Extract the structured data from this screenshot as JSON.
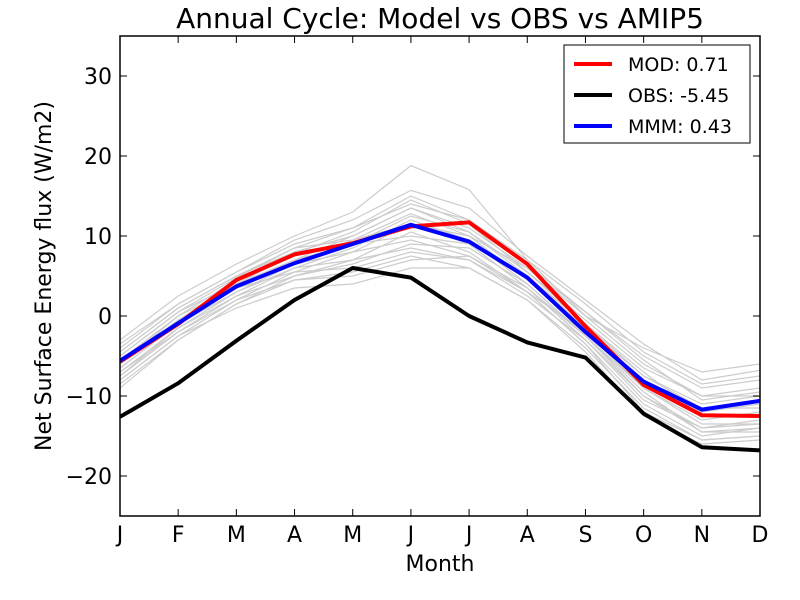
{
  "chart_data": {
    "type": "line",
    "title": "Annual Cycle: Model vs OBS vs AMIP5",
    "xlabel": "Month",
    "ylabel": "Net Surface Energy flux (W/m2)",
    "categories": [
      "J",
      "F",
      "M",
      "A",
      "M",
      "J",
      "J",
      "A",
      "S",
      "O",
      "N",
      "D"
    ],
    "ylim": [
      -25,
      35
    ],
    "yticks": [
      -20,
      -10,
      0,
      10,
      20,
      30
    ],
    "ytick_labels": [
      "−20",
      "−10",
      "0",
      "10",
      "20",
      "30"
    ],
    "grid": false,
    "legend_position": "top-right",
    "series": [
      {
        "name": "MOD: 0.71",
        "color": "#ff0000",
        "values": [
          -5.7,
          -1.0,
          4.5,
          7.7,
          9.1,
          11.2,
          11.7,
          6.5,
          -1.3,
          -8.6,
          -12.4,
          -12.5
        ]
      },
      {
        "name": "OBS: -5.45",
        "color": "#000000",
        "values": [
          -12.6,
          -8.4,
          -3.1,
          2.0,
          6.0,
          4.8,
          0.0,
          -3.3,
          -5.2,
          -12.2,
          -16.4,
          -16.8
        ]
      },
      {
        "name": "MMM: 0.43",
        "color": "#0000ff",
        "values": [
          -5.6,
          -0.9,
          3.7,
          6.6,
          9.0,
          11.4,
          9.3,
          4.8,
          -2.0,
          -8.2,
          -11.7,
          -10.6
        ]
      }
    ],
    "ensemble_color": "#cccccc",
    "ensemble": [
      [
        -3.0,
        2.5,
        6.5,
        10.0,
        13.0,
        18.8,
        15.8,
        7.0,
        0.0,
        -4.0,
        -7.0,
        -6.0
      ],
      [
        -4.0,
        1.5,
        5.5,
        9.5,
        12.0,
        15.7,
        13.5,
        7.5,
        2.0,
        -3.5,
        -8.0,
        -6.8
      ],
      [
        -5.0,
        0.5,
        4.8,
        8.5,
        11.0,
        15.0,
        12.0,
        6.5,
        0.5,
        -5.0,
        -9.0,
        -8.0
      ],
      [
        -6.0,
        -0.5,
        4.0,
        7.8,
        10.5,
        14.5,
        11.5,
        5.5,
        -0.5,
        -6.5,
        -10.0,
        -9.0
      ],
      [
        -6.5,
        -1.0,
        3.5,
        7.0,
        10.0,
        13.5,
        10.5,
        5.0,
        -1.5,
        -7.5,
        -11.0,
        -10.0
      ],
      [
        -7.0,
        -1.5,
        3.0,
        6.5,
        9.5,
        12.8,
        10.0,
        4.5,
        -2.0,
        -8.0,
        -12.0,
        -11.0
      ],
      [
        -7.5,
        -2.0,
        2.5,
        6.0,
        8.5,
        12.0,
        9.5,
        4.0,
        -2.5,
        -9.0,
        -13.0,
        -12.0
      ],
      [
        -8.0,
        -2.5,
        2.0,
        5.5,
        8.0,
        11.5,
        9.0,
        3.5,
        -3.0,
        -10.0,
        -14.0,
        -13.0
      ],
      [
        -8.5,
        -3.0,
        1.5,
        5.0,
        7.0,
        10.5,
        8.0,
        3.0,
        -3.5,
        -11.0,
        -15.0,
        -14.0
      ],
      [
        -5.5,
        0.0,
        4.5,
        8.0,
        9.0,
        10.0,
        9.0,
        5.0,
        -1.0,
        -7.0,
        -12.5,
        -12.5
      ],
      [
        -6.0,
        -1.0,
        3.5,
        6.5,
        8.0,
        9.5,
        7.5,
        3.5,
        -2.5,
        -9.5,
        -14.5,
        -14.0
      ],
      [
        -4.5,
        1.0,
        5.0,
        8.5,
        9.5,
        11.5,
        10.0,
        6.0,
        0.5,
        -5.5,
        -10.5,
        -9.5
      ],
      [
        -7.0,
        -2.0,
        2.0,
        4.5,
        5.5,
        7.5,
        6.0,
        2.0,
        -4.0,
        -11.5,
        -15.5,
        -15.0
      ],
      [
        -5.0,
        0.5,
        4.0,
        7.0,
        9.0,
        12.5,
        10.5,
        5.5,
        -1.0,
        -7.5,
        -11.5,
        -11.5
      ],
      [
        -6.5,
        -1.0,
        3.0,
        6.0,
        7.0,
        8.5,
        7.0,
        2.5,
        -3.0,
        -10.5,
        -14.0,
        -13.5
      ],
      [
        -3.5,
        1.5,
        5.5,
        9.0,
        11.0,
        14.0,
        12.0,
        7.0,
        1.5,
        -4.5,
        -8.5,
        -7.5
      ],
      [
        -8.0,
        -2.5,
        1.0,
        3.5,
        4.0,
        6.0,
        6.0,
        2.0,
        -4.5,
        -12.5,
        -16.0,
        -15.5
      ],
      [
        -7.5,
        -1.5,
        2.5,
        5.0,
        6.5,
        9.0,
        8.5,
        4.0,
        -2.5,
        -10.0,
        -14.5,
        -14.5
      ],
      [
        -4.5,
        1.0,
        5.0,
        8.0,
        10.0,
        13.5,
        11.0,
        6.0,
        0.0,
        -6.0,
        -10.0,
        -10.0
      ],
      [
        -6.0,
        0.0,
        3.5,
        5.5,
        6.0,
        8.0,
        7.0,
        3.0,
        -2.0,
        -9.0,
        -13.5,
        -13.5
      ],
      [
        -9.0,
        -3.0,
        1.5,
        4.5,
        5.0,
        7.0,
        7.5,
        3.0,
        -3.5,
        -12.0,
        -15.5,
        -15.0
      ]
    ]
  }
}
